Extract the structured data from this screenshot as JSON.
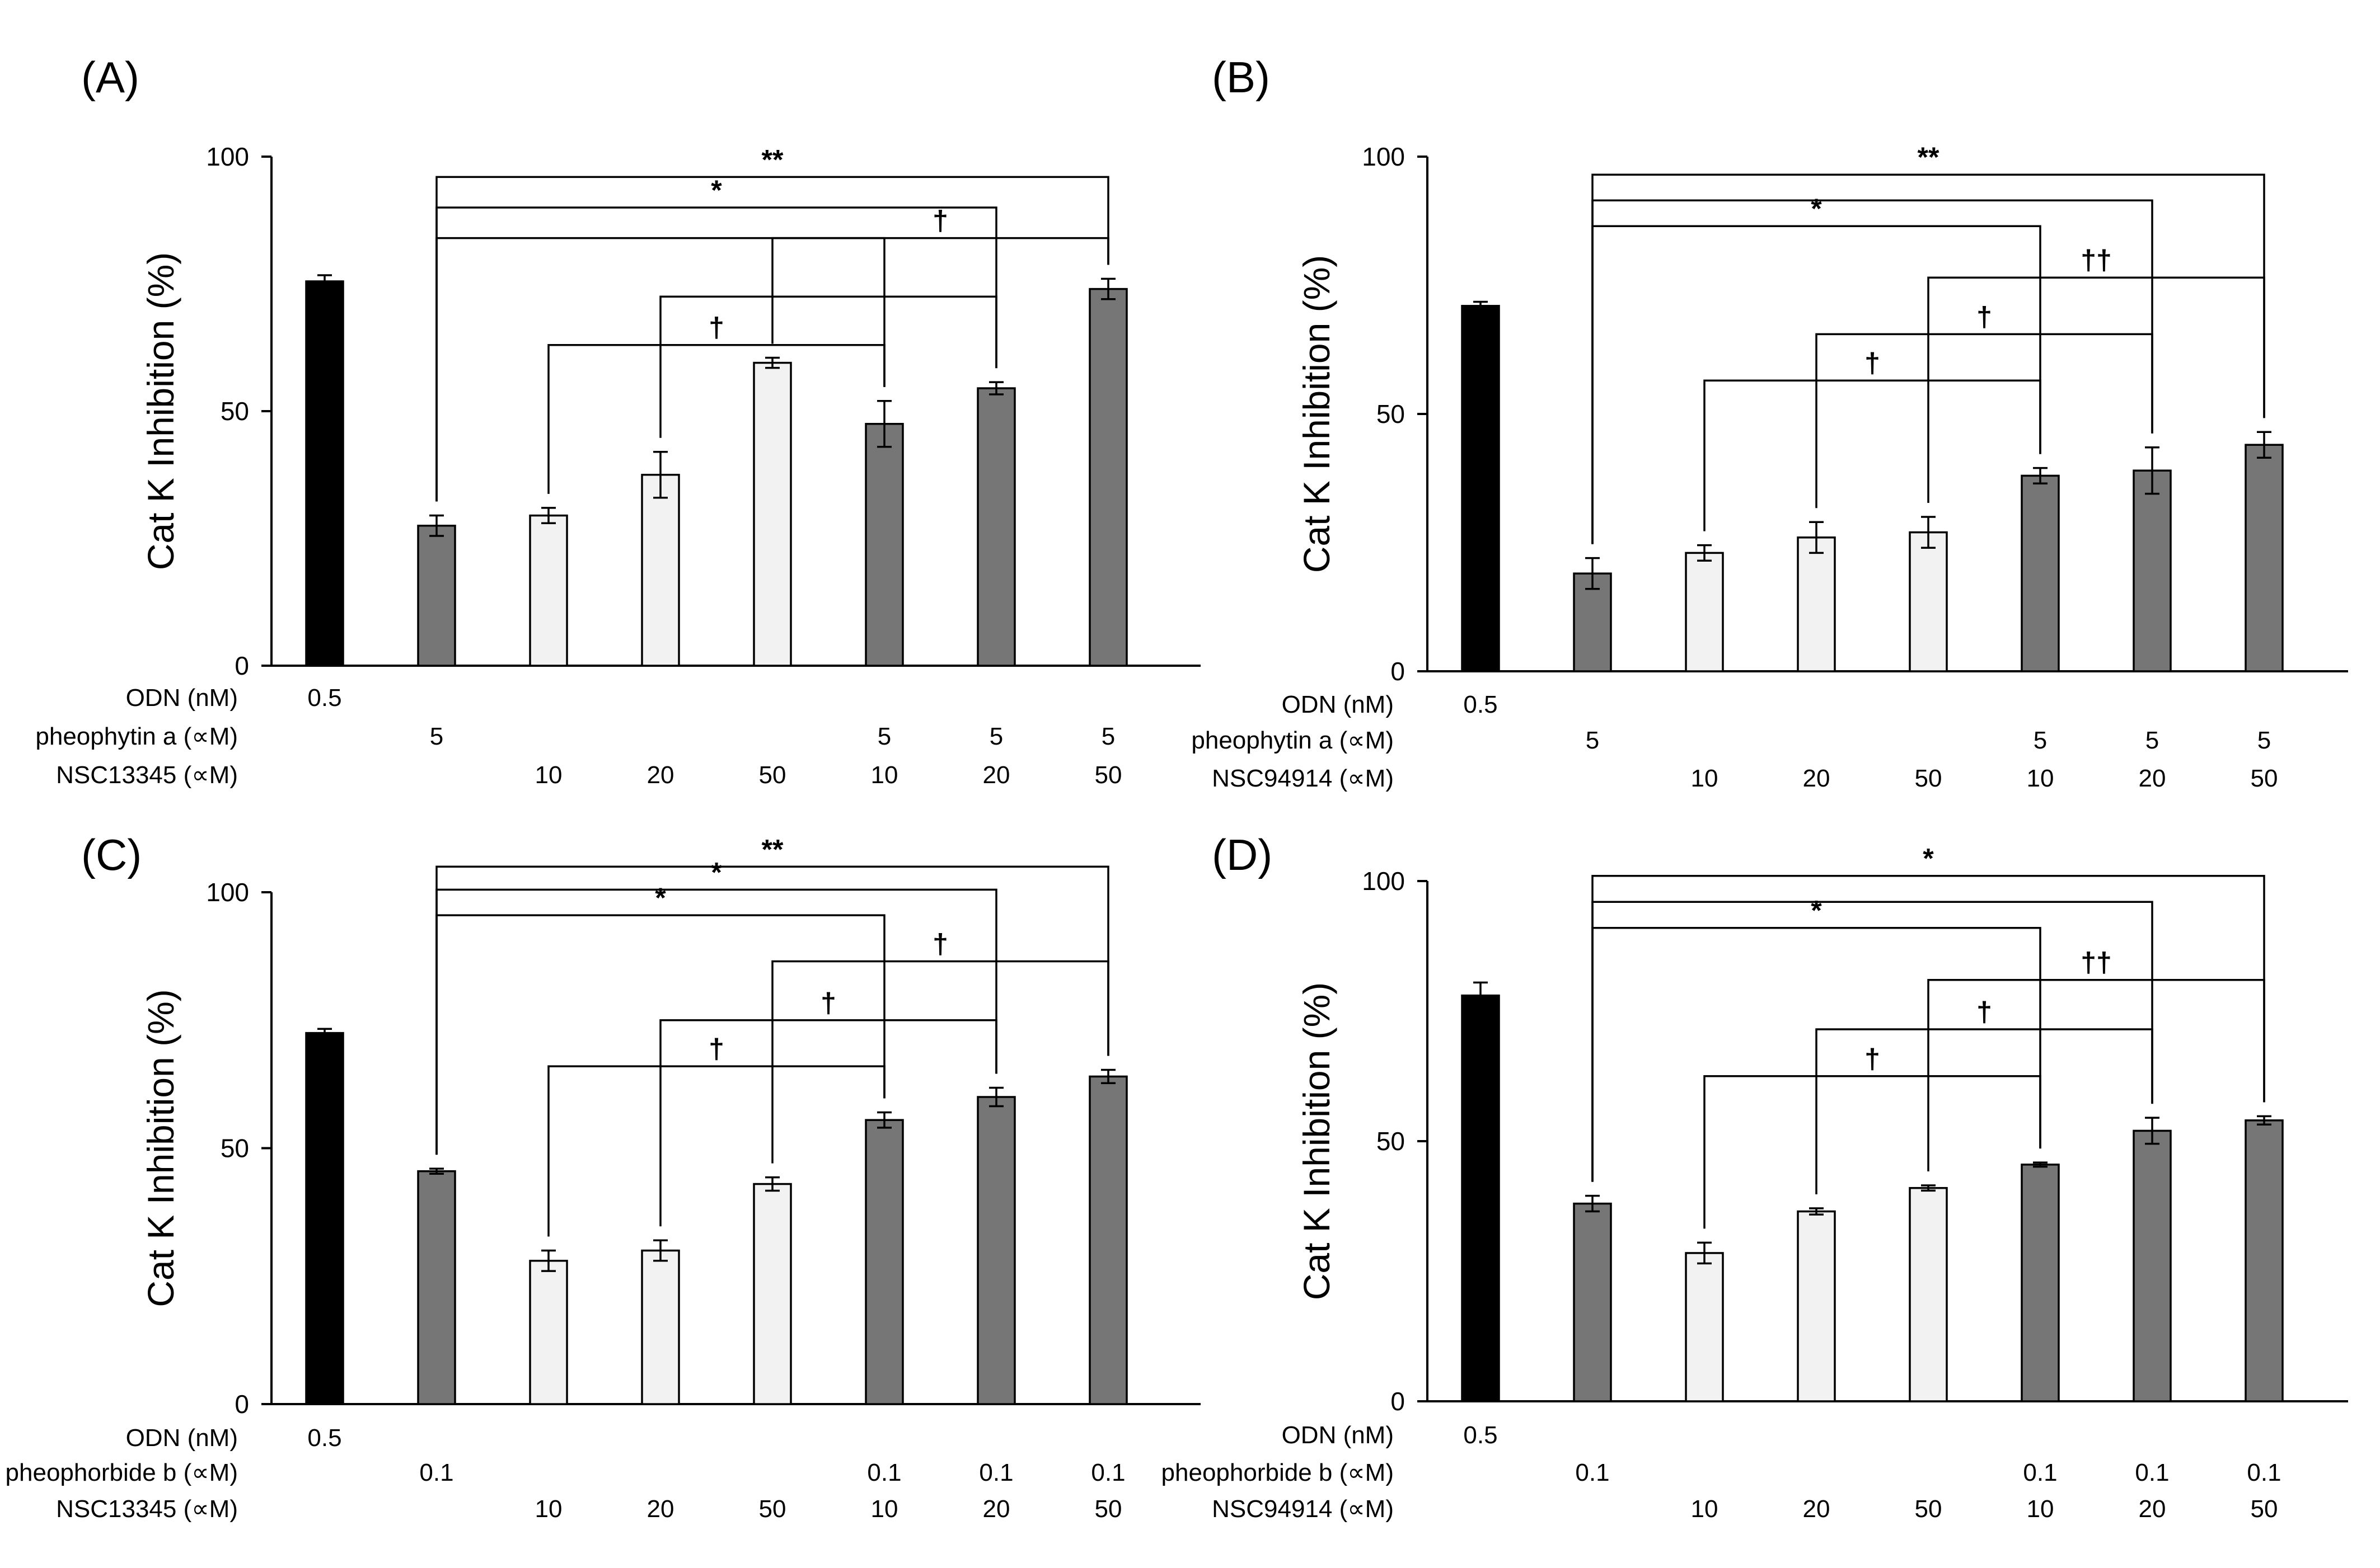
{
  "chart_data": [
    {
      "panel": "(A)",
      "type": "bar",
      "ylabel": "Cat K Inhibition (%)",
      "ylim": [
        0,
        100
      ],
      "yticks": [
        "0",
        "50",
        "100"
      ],
      "row_labels": [
        "ODN (nM)",
        "pheophytin a (∝M)",
        "NSC13345 (∝M)"
      ],
      "rows": [
        [
          "0.5",
          "",
          "",
          "",
          "",
          "",
          "",
          ""
        ],
        [
          "",
          "5",
          "",
          "",
          "",
          "5",
          "5",
          "5"
        ],
        [
          "",
          "",
          "10",
          "20",
          "50",
          "10",
          "20",
          "50"
        ]
      ],
      "values": [
        75.5,
        27.5,
        29.5,
        37.5,
        59.5,
        47.5,
        54.5,
        74
      ],
      "errors": [
        1.2,
        2.0,
        1.5,
        4.5,
        1.0,
        4.5,
        1.2,
        2.0
      ],
      "colors": [
        "#000000",
        "#767676",
        "#f2f2f2",
        "#f2f2f2",
        "#f2f2f2",
        "#767676",
        "#767676",
        "#767676"
      ],
      "significance": [
        {
          "from": 1,
          "to": 5,
          "level": 84,
          "mark": ""
        },
        {
          "from": 1,
          "to": 6,
          "level": 90,
          "mark": "*"
        },
        {
          "from": 1,
          "to": 7,
          "level": 96,
          "mark": "**"
        },
        {
          "from": 2,
          "to": 5,
          "level": 63,
          "mark": "†"
        },
        {
          "from": 3,
          "to": 6,
          "level": 72.5,
          "mark": ""
        },
        {
          "from": 4,
          "to": 7,
          "level": 84,
          "mark": "†"
        }
      ]
    },
    {
      "panel": "(B)",
      "type": "bar",
      "ylabel": "Cat K Inhibition (%)",
      "ylim": [
        0,
        100
      ],
      "yticks": [
        "0",
        "50",
        "100"
      ],
      "row_labels": [
        "ODN (nM)",
        "pheophytin a (∝M)",
        "NSC94914 (∝M)"
      ],
      "rows": [
        [
          "0.5",
          "",
          "",
          "",
          "",
          "",
          "",
          ""
        ],
        [
          "",
          "5",
          "",
          "",
          "",
          "5",
          "5",
          "5"
        ],
        [
          "",
          "",
          "10",
          "20",
          "50",
          "10",
          "20",
          "50"
        ]
      ],
      "values": [
        71,
        19,
        23,
        26,
        27,
        38,
        39,
        44
      ],
      "errors": [
        0.8,
        3.0,
        1.5,
        3.0,
        3.0,
        1.5,
        4.5,
        2.5
      ],
      "colors": [
        "#000000",
        "#767676",
        "#f2f2f2",
        "#f2f2f2",
        "#f2f2f2",
        "#767676",
        "#767676",
        "#767676"
      ],
      "significance": [
        {
          "from": 1,
          "to": 5,
          "level": 86.5,
          "mark": "*"
        },
        {
          "from": 1,
          "to": 6,
          "level": 91.5,
          "mark": ""
        },
        {
          "from": 1,
          "to": 7,
          "level": 96.5,
          "mark": "**"
        },
        {
          "from": 2,
          "to": 5,
          "level": 56.5,
          "mark": "†"
        },
        {
          "from": 3,
          "to": 6,
          "level": 65.5,
          "mark": "†"
        },
        {
          "from": 4,
          "to": 7,
          "level": 76.5,
          "mark": "††"
        }
      ]
    },
    {
      "panel": "(C)",
      "type": "bar",
      "ylabel": "Cat K Inhibition (%)",
      "ylim": [
        0,
        100
      ],
      "yticks": [
        "0",
        "50",
        "100"
      ],
      "row_labels": [
        "ODN (nM)",
        "pheophorbide b (∝M)",
        "NSC13345 (∝M)"
      ],
      "rows": [
        [
          "0.5",
          "",
          "",
          "",
          "",
          "",
          "",
          ""
        ],
        [
          "",
          "0.1",
          "",
          "",
          "",
          "0.1",
          "0.1",
          "0.1"
        ],
        [
          "",
          "",
          "10",
          "20",
          "50",
          "10",
          "20",
          "50"
        ]
      ],
      "values": [
        72.5,
        45.5,
        28,
        30,
        43,
        55.5,
        60,
        64
      ],
      "errors": [
        0.8,
        0.5,
        2.0,
        2.0,
        1.3,
        1.5,
        1.8,
        1.3
      ],
      "colors": [
        "#000000",
        "#767676",
        "#f2f2f2",
        "#f2f2f2",
        "#f2f2f2",
        "#767676",
        "#767676",
        "#767676"
      ],
      "significance": [
        {
          "from": 1,
          "to": 5,
          "level": 95.5,
          "mark": "*"
        },
        {
          "from": 1,
          "to": 6,
          "level": 100.5,
          "mark": "*"
        },
        {
          "from": 1,
          "to": 7,
          "level": 105,
          "mark": "**"
        },
        {
          "from": 2,
          "to": 5,
          "level": 66,
          "mark": "†"
        },
        {
          "from": 3,
          "to": 6,
          "level": 75,
          "mark": "†"
        },
        {
          "from": 4,
          "to": 7,
          "level": 86.5,
          "mark": "†"
        }
      ]
    },
    {
      "panel": "(D)",
      "type": "bar",
      "ylabel": "Cat K Inhibition (%)",
      "ylim": [
        0,
        100
      ],
      "yticks": [
        "0",
        "50",
        "100"
      ],
      "row_labels": [
        "ODN (nM)",
        "pheophorbide b (∝M)",
        "NSC94914 (∝M)"
      ],
      "rows": [
        [
          "0.5",
          "",
          "",
          "",
          "",
          "",
          "",
          ""
        ],
        [
          "",
          "0.1",
          "",
          "",
          "",
          "0.1",
          "0.1",
          "0.1"
        ],
        [
          "",
          "",
          "10",
          "20",
          "50",
          "10",
          "20",
          "50"
        ]
      ],
      "values": [
        78,
        38,
        28.5,
        36.5,
        41,
        45.5,
        52,
        54
      ],
      "errors": [
        2.5,
        1.5,
        2.0,
        0.6,
        0.5,
        0.4,
        2.5,
        0.8
      ],
      "colors": [
        "#000000",
        "#767676",
        "#f2f2f2",
        "#f2f2f2",
        "#f2f2f2",
        "#767676",
        "#767676",
        "#767676"
      ],
      "significance": [
        {
          "from": 1,
          "to": 5,
          "level": 91,
          "mark": "*"
        },
        {
          "from": 1,
          "to": 6,
          "level": 96,
          "mark": ""
        },
        {
          "from": 1,
          "to": 7,
          "level": 101,
          "mark": "*"
        },
        {
          "from": 2,
          "to": 5,
          "level": 62.5,
          "mark": "†"
        },
        {
          "from": 3,
          "to": 6,
          "level": 71.5,
          "mark": "†"
        },
        {
          "from": 4,
          "to": 7,
          "level": 81,
          "mark": "††"
        }
      ]
    }
  ]
}
